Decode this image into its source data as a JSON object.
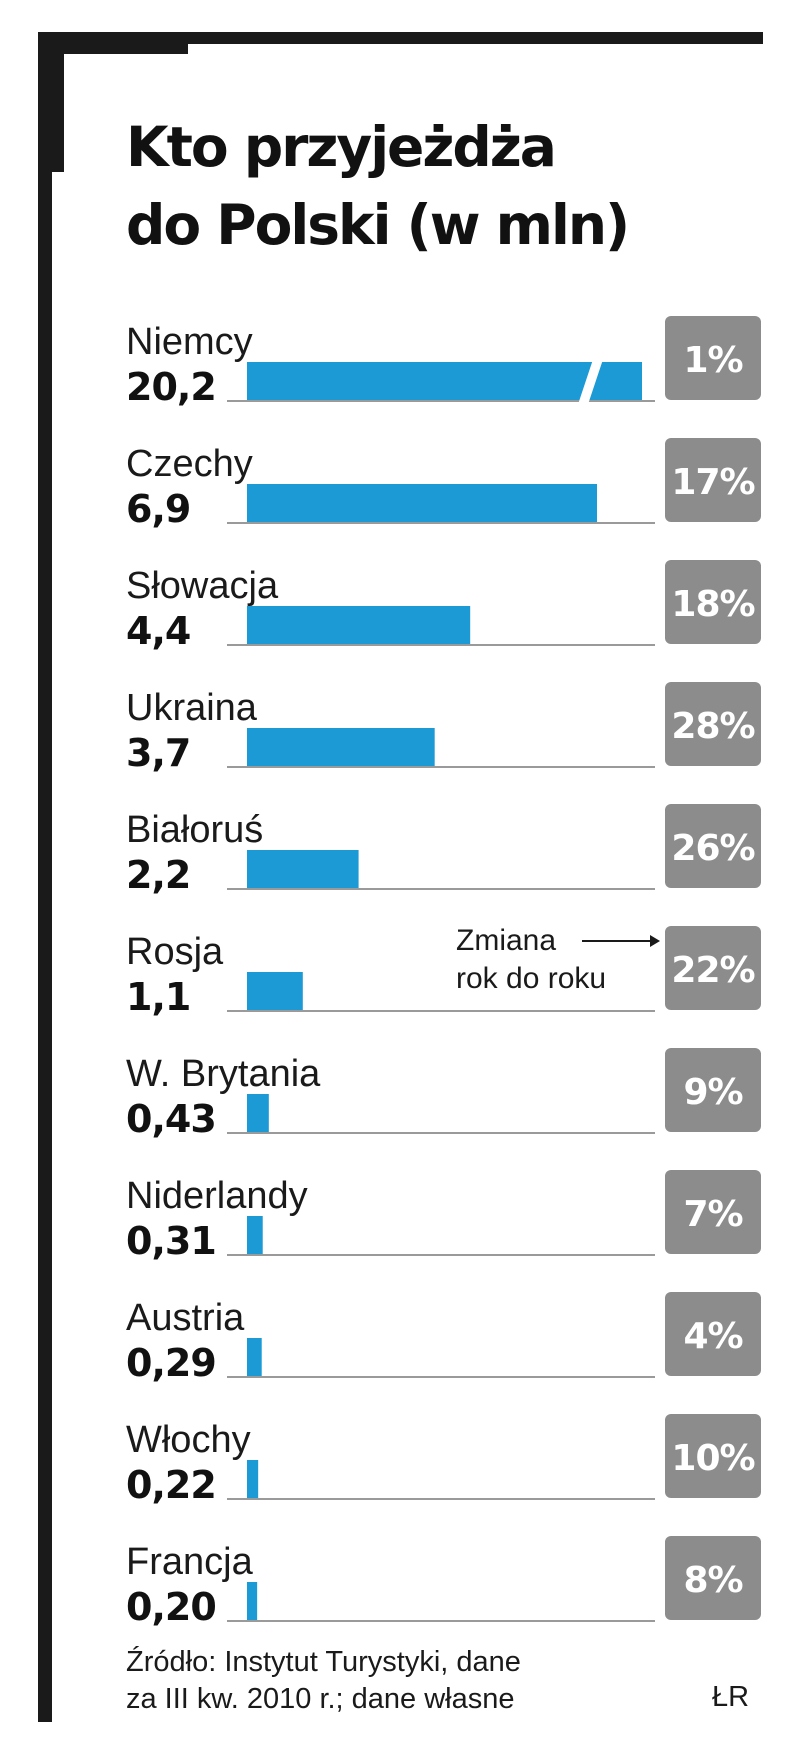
{
  "title_line1": "Kto przyjeżdża",
  "title_line2": "do Polski (w mln)",
  "annotation": {
    "line1": "Zmiana",
    "line2": "rok do roku"
  },
  "source_line1": "Źródło: Instytut Turystyki, dane",
  "source_line2": "za III kw. 2010 r.; dane własne",
  "author": "ŁR",
  "colors": {
    "bar": "#1b9ad6",
    "badge": "#8c8c8c",
    "frame": "#1a1a1a"
  },
  "chart_data": {
    "type": "bar",
    "orientation": "horizontal",
    "title": "Kto przyjeżdża do Polski (w mln)",
    "categories": [
      "Niemcy",
      "Czechy",
      "Słowacja",
      "Ukraina",
      "Białoruś",
      "Rosja",
      "W. Brytania",
      "Niderlandy",
      "Austria",
      "Włochy",
      "Francja"
    ],
    "value_labels": [
      "20,2",
      "6,9",
      "4,4",
      "3,7",
      "2,2",
      "1,1",
      "0,43",
      "0,31",
      "0,29",
      "0,22",
      "0,20"
    ],
    "values": [
      20.2,
      6.9,
      4.4,
      3.7,
      2.2,
      1.1,
      0.43,
      0.31,
      0.29,
      0.22,
      0.2
    ],
    "change_labels": [
      "1%",
      "17%",
      "18%",
      "28%",
      "26%",
      "22%",
      "9%",
      "7%",
      "4%",
      "10%",
      "8%"
    ],
    "axis_break": "Niemcy",
    "grid": false,
    "legend": "none"
  }
}
